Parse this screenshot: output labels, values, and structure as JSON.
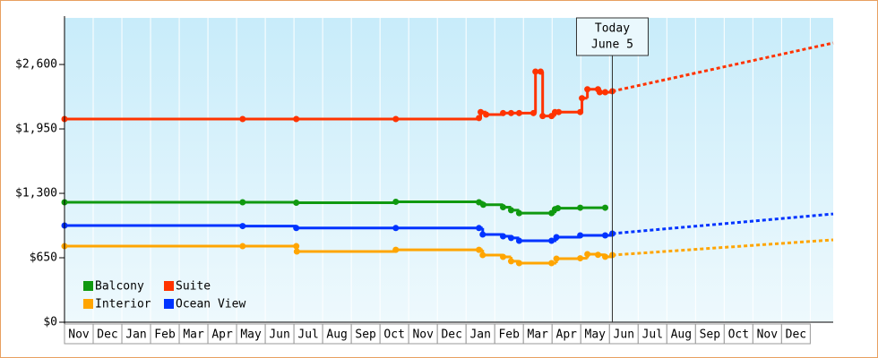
{
  "chart_data": {
    "type": "step-line",
    "categories": [
      "Nov",
      "Dec",
      "Jan",
      "Feb",
      "Mar",
      "Apr",
      "May",
      "Jun",
      "Jul",
      "Aug",
      "Sep",
      "Oct",
      "Nov",
      "Dec",
      "Jan",
      "Feb",
      "Mar",
      "Apr",
      "May",
      "Jun",
      "Jul",
      "Aug",
      "Sep",
      "Oct",
      "Nov",
      "Dec"
    ],
    "xlim": [
      0,
      26.8
    ],
    "ylim": [
      0,
      3070
    ],
    "yticks": [
      {
        "value": 0,
        "label": "$0"
      },
      {
        "value": 650,
        "label": "$650"
      },
      {
        "value": 1300,
        "label": "$1,300"
      },
      {
        "value": 1950,
        "label": "$1,950"
      },
      {
        "value": 2600,
        "label": "$2,600"
      }
    ],
    "grid": true,
    "legend": "lower left",
    "today": {
      "label": [
        "Today",
        "June 5"
      ],
      "x": 19.1
    },
    "series": [
      {
        "name": "Balcony",
        "color": "#109910",
        "x": [
          0,
          6.21,
          8.08,
          11.55,
          14.45,
          14.6,
          15.29,
          15.57,
          15.85,
          16.98,
          17.1,
          17.2,
          17.98,
          18.85
        ],
        "values": [
          1210,
          1210,
          1205,
          1215,
          1210,
          1185,
          1160,
          1130,
          1100,
          1100,
          1140,
          1150,
          1155,
          1155
        ]
      },
      {
        "name": "Suite",
        "color": "#ff3300",
        "x": [
          0,
          6.21,
          8.08,
          11.55,
          14.45,
          14.51,
          14.7,
          15.29,
          15.57,
          15.85,
          16.35,
          16.42,
          16.6,
          16.67,
          16.98,
          17.1,
          17.23,
          17.98,
          18.04,
          18.23,
          18.6,
          18.66,
          18.85,
          19.1
        ],
        "values": [
          2050,
          2050,
          2050,
          2050,
          2060,
          2120,
          2095,
          2110,
          2110,
          2110,
          2110,
          2528,
          2528,
          2080,
          2080,
          2120,
          2120,
          2120,
          2260,
          2350,
          2350,
          2320,
          2320,
          2330
        ],
        "forecast": {
          "x": [
            19.1,
            26.8
          ],
          "values": [
            2330,
            2817
          ]
        }
      },
      {
        "name": "Interior",
        "color": "#ffa500",
        "x": [
          0,
          6.21,
          8.08,
          8.1,
          11.55,
          14.45,
          14.58,
          15.29,
          15.57,
          15.85,
          16.98,
          17.15,
          17.98,
          18.23,
          18.6,
          18.85,
          19.1
        ],
        "values": [
          767,
          767,
          767,
          713,
          730,
          730,
          677,
          659,
          615,
          596,
          596,
          641,
          645,
          686,
          680,
          660,
          677
        ],
        "forecast": {
          "x": [
            19.1,
            26.8
          ],
          "values": [
            677,
            831
          ]
        }
      },
      {
        "name": "Ocean View",
        "color": "#0033ff",
        "x": [
          0,
          6.21,
          8.08,
          11.55,
          14.45,
          14.58,
          15.29,
          15.57,
          15.85,
          16.98,
          17.15,
          17.98,
          18.85,
          19.1
        ],
        "values": [
          975,
          970,
          950,
          950,
          950,
          885,
          867,
          850,
          822,
          822,
          858,
          876,
          876,
          894
        ],
        "forecast": {
          "x": [
            19.1,
            26.8
          ],
          "values": [
            894,
            1092
          ]
        }
      }
    ]
  }
}
